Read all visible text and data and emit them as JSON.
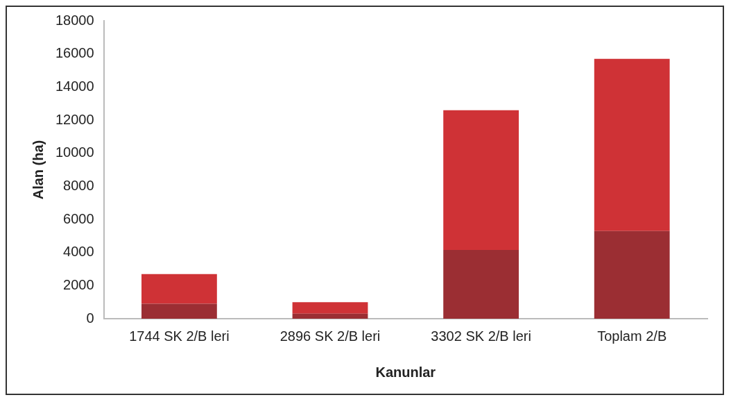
{
  "chart_data": {
    "type": "bar",
    "xlabel": "Kanunlar",
    "ylabel": "Alan (ha)",
    "categories": [
      "1744 SK 2/B leri",
      "2896 SK 2/B leri",
      "3302 SK 2/B leri",
      "Toplam 2/B"
    ],
    "stacked": true,
    "series": [
      {
        "color": "#9b2e33",
        "values": [
          900,
          300,
          4150,
          5300
        ]
      },
      {
        "color": "#cf3236",
        "values": [
          1800,
          700,
          8450,
          10400
        ]
      }
    ],
    "ylim": [
      0,
      18000
    ],
    "yticks": [
      0,
      2000,
      4000,
      6000,
      8000,
      10000,
      12000,
      14000,
      16000,
      18000
    ],
    "grid": false,
    "legend": false
  }
}
